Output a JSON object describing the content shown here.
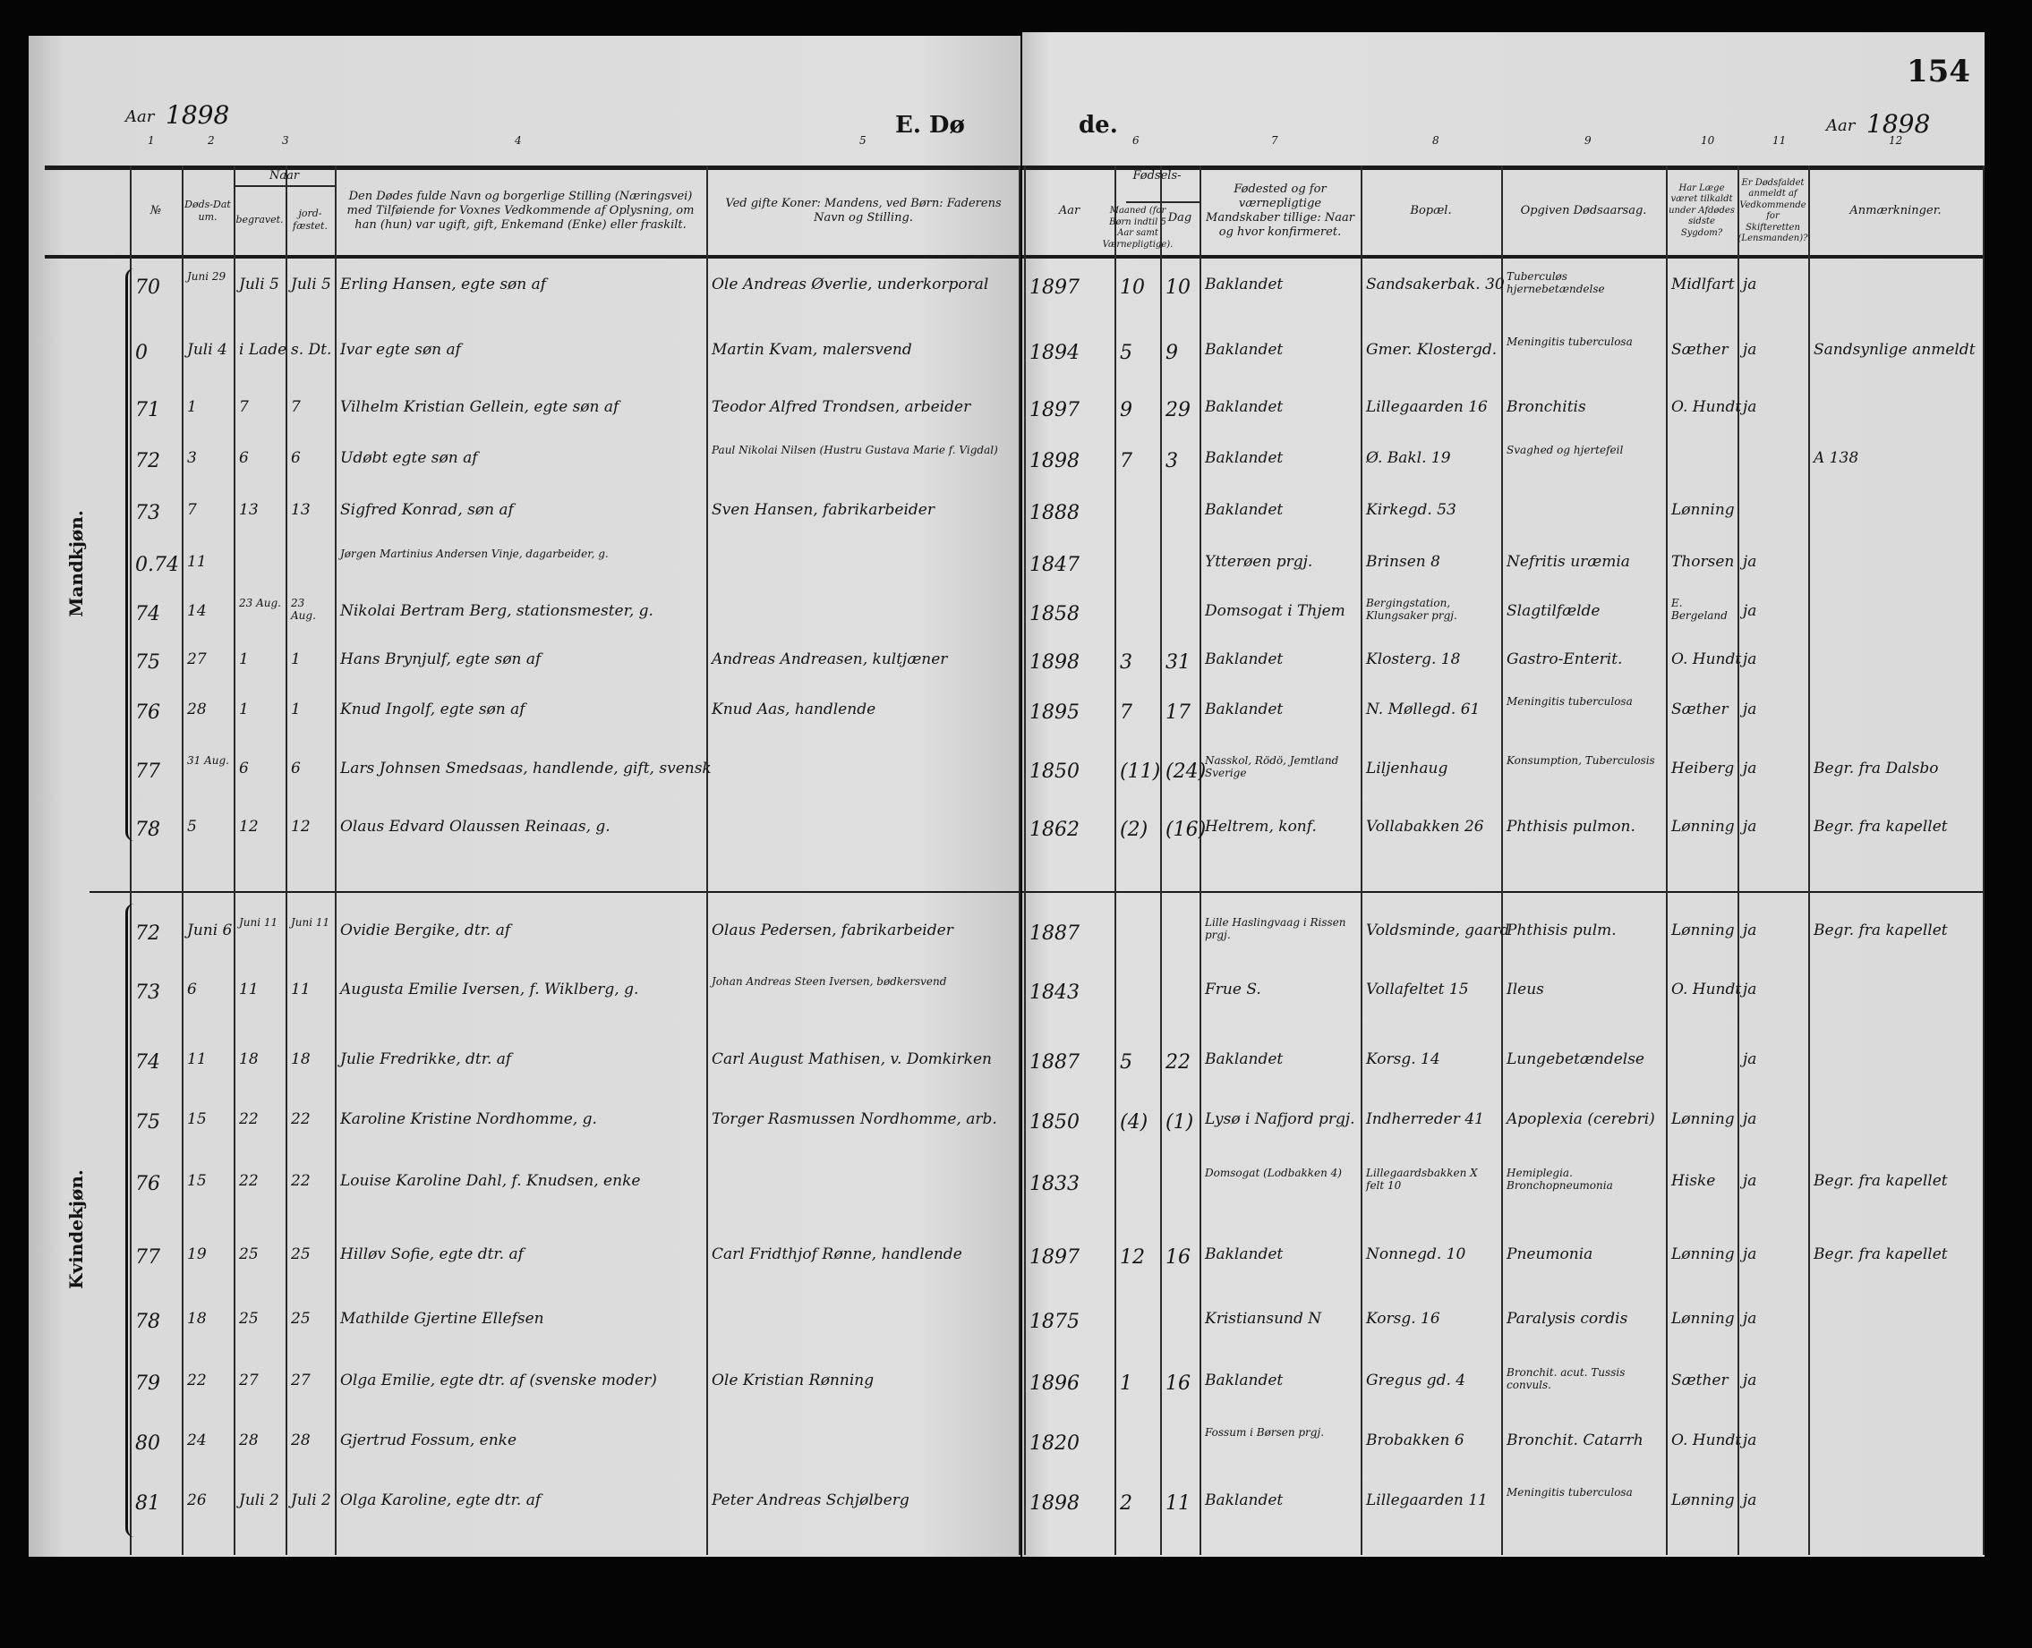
{
  "page_number": "154",
  "title_left": "E. Dø",
  "title_right": "de.",
  "year_label_left": "Aar",
  "year_left": "1898",
  "year_label_right": "Aar",
  "year_right": "1898",
  "column_numbers": [
    "1",
    "2",
    "3",
    "4",
    "5",
    "6",
    "7",
    "8",
    "9",
    "10",
    "11",
    "12"
  ],
  "headers": {
    "no": "№",
    "death_date": "Døds-Datum.",
    "when": "Naar",
    "buried": "begravet.",
    "interred": "jord-fæstet.",
    "name": "Den Dødes fulde Navn og borgerlige Stilling (Næringsvei) med Tilføiende for Voxnes Vedkommende af Oplysning, om han (hun) var ugift, gift, Enkemand (Enke) eller fraskilt.",
    "parent": "Ved gifte Koner: Mandens, ved Børn: Faderens Navn og Stilling.",
    "year": "Aar",
    "birth": "Fødsels-",
    "month": "Maaned (for Børn indtil 5 Aar samt Værnepligtige).",
    "day": "Dag",
    "birthplace": "Fødested og for værnepligtige Mandskaber tillige: Naar og hvor konfirmeret.",
    "residence": "Bopæl.",
    "cause": "Opgiven Dødsaarsag.",
    "doctor": "Har Læge været tilkaldt under Afdødes sidste Sygdom?",
    "reported": "Er Dødsfaldet anmeldt af Vedkommende for Skifteretten (Lensmanden)?",
    "remarks": "Anmærkninger."
  },
  "sections": [
    {
      "label": "Mandkjøn.",
      "rows": [
        {
          "no": "70",
          "died": "Juni 29",
          "buried": "Juli 5",
          "interred": "Juli 5",
          "name": "Erling Hansen, egte søn af",
          "parent": "Ole Andreas Øverlie, underkorporal",
          "year": "1897",
          "month": "10",
          "day": "10",
          "birthplace": "Baklandet",
          "residence": "Sandsakerbak. 30",
          "cause": "Tuberculøs hjernebetændelse",
          "doctor": "Midlfart",
          "reported": "ja",
          "remarks": ""
        },
        {
          "no": "0",
          "died": "Juli 4",
          "buried": "i Lade",
          "interred": "s. Dt.",
          "name": "Ivar egte søn af",
          "parent": "Martin Kvam, malersvend",
          "year": "1894",
          "month": "5",
          "day": "9",
          "birthplace": "Baklandet",
          "residence": "Gmer. Klostergd.",
          "cause": "Meningitis tuberculosa",
          "doctor": "Sæther",
          "reported": "ja",
          "remarks": "Sandsynlige anmeldt"
        },
        {
          "no": "71",
          "died": "1",
          "buried": "7",
          "interred": "7",
          "name": "Vilhelm Kristian Gellein, egte søn af",
          "parent": "Teodor Alfred Trondsen, arbeider",
          "year": "1897",
          "month": "9",
          "day": "29",
          "birthplace": "Baklandet",
          "residence": "Lillegaarden 16",
          "cause": "Bronchitis",
          "doctor": "O. Hundt",
          "reported": "ja",
          "remarks": ""
        },
        {
          "no": "72",
          "died": "3",
          "buried": "6",
          "interred": "6",
          "name": "Udøbt egte søn af",
          "parent": "Paul Nikolai Nilsen (Hustru Gustava Marie f. Vigdal)",
          "year": "1898",
          "month": "7",
          "day": "3",
          "birthplace": "Baklandet",
          "residence": "Ø. Bakl. 19",
          "cause": "Svaghed og hjertefeil",
          "doctor": "",
          "reported": "",
          "remarks": "A 138"
        },
        {
          "no": "73",
          "died": "7",
          "buried": "13",
          "interred": "13",
          "name": "Sigfred Konrad, søn af",
          "parent": "Sven Hansen, fabrikarbeider",
          "year": "1888",
          "month": "",
          "day": "",
          "birthplace": "Baklandet",
          "residence": "Kirkegd. 53",
          "cause": "",
          "doctor": "Lønning",
          "reported": "",
          "remarks": ""
        },
        {
          "no": "0.74",
          "died": "11",
          "buried": "",
          "interred": "",
          "name": "Jørgen Martinius Andersen Vinje, dagarbeider, g.",
          "parent": "",
          "year": "1847",
          "month": "",
          "day": "",
          "birthplace": "Ytterøen prgj.",
          "residence": "Brinsen 8",
          "cause": "Nefritis uræmia",
          "doctor": "Thorsen",
          "reported": "ja",
          "remarks": ""
        },
        {
          "no": "74",
          "died": "14",
          "buried": "23 Aug.",
          "interred": "23 Aug.",
          "name": "Nikolai Bertram Berg, stationsmester, g.",
          "parent": "",
          "year": "1858",
          "month": "",
          "day": "",
          "birthplace": "Domsogat i Thjem",
          "residence": "Bergingstation, Klungsaker prgj.",
          "cause": "Slagtilfælde",
          "doctor": "E. Bergeland",
          "reported": "ja",
          "remarks": ""
        },
        {
          "no": "75",
          "died": "27",
          "buried": "1",
          "interred": "1",
          "name": "Hans Brynjulf, egte søn af",
          "parent": "Andreas Andreasen, kultjæner",
          "year": "1898",
          "month": "3",
          "day": "31",
          "birthplace": "Baklandet",
          "residence": "Klosterg. 18",
          "cause": "Gastro-Enterit.",
          "doctor": "O. Hundt",
          "reported": "ja",
          "remarks": ""
        },
        {
          "no": "76",
          "died": "28",
          "buried": "1",
          "interred": "1",
          "name": "Knud Ingolf, egte søn af",
          "parent": "Knud Aas, handlende",
          "year": "1895",
          "month": "7",
          "day": "17",
          "birthplace": "Baklandet",
          "residence": "N. Møllegd. 61",
          "cause": "Meningitis tuberculosa",
          "doctor": "Sæther",
          "reported": "ja",
          "remarks": ""
        },
        {
          "no": "77",
          "died": "31 Aug.",
          "buried": "6",
          "interred": "6",
          "name": "Lars Johnsen Smedsaas, handlende, gift, svensk",
          "parent": "",
          "year": "1850",
          "month": "(11)",
          "day": "(24)",
          "birthplace": "Nasskol, Rödö, Jemtland Sverige",
          "residence": "Liljenhaug",
          "cause": "Konsumption, Tuberculosis",
          "doctor": "Heiberg",
          "reported": "ja",
          "remarks": "Begr. fra Dalsbo"
        },
        {
          "no": "78",
          "died": "5",
          "buried": "12",
          "interred": "12",
          "name": "Olaus Edvard Olaussen Reinaas, g.",
          "parent": "",
          "year": "1862",
          "month": "(2)",
          "day": "(16)",
          "birthplace": "Heltrem, konf.",
          "residence": "Vollabakken 26",
          "cause": "Phthisis pulmon.",
          "doctor": "Lønning",
          "reported": "ja",
          "remarks": "Begr. fra kapellet"
        }
      ]
    },
    {
      "label": "Kvindekjøn.",
      "rows": [
        {
          "no": "72",
          "died": "Juni 6",
          "buried": "Juni 11",
          "interred": "Juni 11",
          "name": "Ovidie Bergike, dtr. af",
          "parent": "Olaus Pedersen, fabrikarbeider",
          "year": "1887",
          "month": "",
          "day": "",
          "birthplace": "Lille Haslingvaag i Rissen prgj.",
          "residence": "Voldsminde, gaard",
          "cause": "Phthisis pulm.",
          "doctor": "Lønning",
          "reported": "ja",
          "remarks": "Begr. fra kapellet"
        },
        {
          "no": "73",
          "died": "6",
          "buried": "11",
          "interred": "11",
          "name": "Augusta Emilie Iversen, f. Wiklberg, g.",
          "parent": "Johan Andreas Steen Iversen, bødkersvend",
          "year": "1843",
          "month": "",
          "day": "",
          "birthplace": "Frue S.",
          "residence": "Vollafeltet 15",
          "cause": "Ileus",
          "doctor": "O. Hundt",
          "reported": "ja",
          "remarks": ""
        },
        {
          "no": "74",
          "died": "11",
          "buried": "18",
          "interred": "18",
          "name": "Julie Fredrikke, dtr. af",
          "parent": "Carl August Mathisen, v. Domkirken",
          "year": "1887",
          "month": "5",
          "day": "22",
          "birthplace": "Baklandet",
          "residence": "Korsg. 14",
          "cause": "Lungebetændelse",
          "doctor": "",
          "reported": "ja",
          "remarks": ""
        },
        {
          "no": "75",
          "died": "15",
          "buried": "22",
          "interred": "22",
          "name": "Karoline Kristine Nordhomme, g.",
          "parent": "Torger Rasmussen Nordhomme, arb.",
          "year": "1850",
          "month": "(4)",
          "day": "(1)",
          "birthplace": "Lysø i Nafjord prgj.",
          "residence": "Indherreder 41",
          "cause": "Apoplexia (cerebri)",
          "doctor": "Lønning",
          "reported": "ja",
          "remarks": ""
        },
        {
          "no": "76",
          "died": "15",
          "buried": "22",
          "interred": "22",
          "name": "Louise Karoline Dahl, f. Knudsen, enke",
          "parent": "",
          "year": "1833",
          "month": "",
          "day": "",
          "birthplace": "Domsogat (Lodbakken 4)",
          "residence": "Lillegaardsbakken X felt 10",
          "cause": "Hemiplegia. Bronchopneumonia",
          "doctor": "Hiske",
          "reported": "ja",
          "remarks": "Begr. fra kapellet"
        },
        {
          "no": "77",
          "died": "19",
          "buried": "25",
          "interred": "25",
          "name": "Hilløv Sofie, egte dtr. af",
          "parent": "Carl Fridthjof Rønne, handlende",
          "year": "1897",
          "month": "12",
          "day": "16",
          "birthplace": "Baklandet",
          "residence": "Nonnegd. 10",
          "cause": "Pneumonia",
          "doctor": "Lønning",
          "reported": "ja",
          "remarks": "Begr. fra kapellet"
        },
        {
          "no": "78",
          "died": "18",
          "buried": "25",
          "interred": "25",
          "name": "Mathilde Gjertine Ellefsen",
          "parent": "",
          "year": "1875",
          "month": "",
          "day": "",
          "birthplace": "Kristiansund N",
          "residence": "Korsg. 16",
          "cause": "Paralysis cordis",
          "doctor": "Lønning",
          "reported": "ja",
          "remarks": ""
        },
        {
          "no": "79",
          "died": "22",
          "buried": "27",
          "interred": "27",
          "name": "Olga Emilie, egte dtr. af (svenske moder)",
          "parent": "Ole Kristian Rønning",
          "year": "1896",
          "month": "1",
          "day": "16",
          "birthplace": "Baklandet",
          "residence": "Gregus gd. 4",
          "cause": "Bronchit. acut. Tussis convuls.",
          "doctor": "Sæther",
          "reported": "ja",
          "remarks": ""
        },
        {
          "no": "80",
          "died": "24",
          "buried": "28",
          "interred": "28",
          "name": "Gjertrud Fossum, enke",
          "parent": "",
          "year": "1820",
          "month": "",
          "day": "",
          "birthplace": "Fossum i Børsen prgj.",
          "residence": "Brobakken 6",
          "cause": "Bronchit. Catarrh",
          "doctor": "O. Hundt",
          "reported": "ja",
          "remarks": ""
        },
        {
          "no": "81",
          "died": "26",
          "buried": "Juli 2",
          "interred": "Juli 2",
          "name": "Olga Karoline, egte dtr. af",
          "parent": "Peter Andreas Schjølberg",
          "year": "1898",
          "month": "2",
          "day": "11",
          "birthplace": "Baklandet",
          "residence": "Lillegaarden 11",
          "cause": "Meningitis tuberculosa",
          "doctor": "Lønning",
          "reported": "ja",
          "remarks": ""
        }
      ]
    }
  ]
}
